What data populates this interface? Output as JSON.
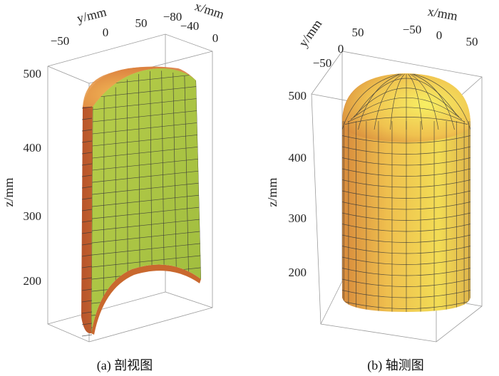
{
  "panel_a": {
    "caption": "(a)  剖视图",
    "x_axis_label": "x/mm",
    "y_axis_label": "y/mm",
    "z_axis_label": "z/mm",
    "x_ticks": [
      "−80",
      "−40",
      "0"
    ],
    "y_ticks": [
      "−50",
      "0",
      "50"
    ],
    "z_ticks": [
      "500",
      "400",
      "300",
      "200"
    ]
  },
  "panel_b": {
    "caption": "(b)  轴测图",
    "x_axis_label": "x/mm",
    "y_axis_label": "y/mm",
    "z_axis_label": "z/mm",
    "x_ticks": [
      "−50",
      "0",
      "50"
    ],
    "y_ticks": [
      "50",
      "0",
      "−50"
    ],
    "z_ticks": [
      "500",
      "400",
      "300",
      "200"
    ]
  },
  "colors": {
    "section_face": "#a9c443",
    "surface_light": "#f2e455",
    "surface_mid": "#f0b54a",
    "surface_dark": "#c9682e",
    "mesh": "#3a3a3a"
  }
}
